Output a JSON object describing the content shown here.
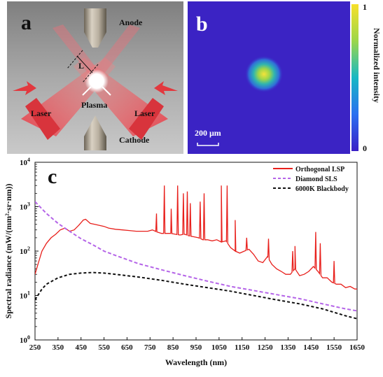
{
  "panel_a": {
    "letter": "a",
    "labels": {
      "anode": "Anode",
      "cathode": "Cathode",
      "plasma": "Plasma",
      "laser_left": "Laser",
      "laser_right": "Laser",
      "length": "L"
    }
  },
  "panel_b": {
    "letter": "b",
    "colorbar_label": "Normalized intensity",
    "colorbar_max": "1",
    "colorbar_min": "0",
    "scalebar_label": "200 μm"
  },
  "chart_data": {
    "type": "line",
    "panel_letter": "c",
    "xlabel": "Wavelength (nm)",
    "ylabel": "Spectral radiance (mW/(mm²·sr·nm))",
    "xlim": [
      250,
      1650
    ],
    "ylim": [
      1,
      10000
    ],
    "yscale": "log",
    "x_ticks": [
      "250",
      "350",
      "450",
      "550",
      "650",
      "750",
      "850",
      "950",
      "1050",
      "1150",
      "1250",
      "1350",
      "1450",
      "1550",
      "1650"
    ],
    "y_ticks": [
      {
        "base": "10",
        "exp": "0",
        "value": 1
      },
      {
        "base": "10",
        "exp": "1",
        "value": 10
      },
      {
        "base": "10",
        "exp": "2",
        "value": 100
      },
      {
        "base": "10",
        "exp": "3",
        "value": 1000
      },
      {
        "base": "10",
        "exp": "4",
        "value": 10000
      }
    ],
    "legend_position": "top-right",
    "series": [
      {
        "name": "Orthogonal LSP",
        "color": "#e8201c",
        "style": "solid",
        "points": [
          [
            250,
            30
          ],
          [
            265,
            55
          ],
          [
            280,
            100
          ],
          [
            300,
            150
          ],
          [
            320,
            200
          ],
          [
            340,
            240
          ],
          [
            360,
            300
          ],
          [
            380,
            330
          ],
          [
            400,
            280
          ],
          [
            420,
            300
          ],
          [
            440,
            380
          ],
          [
            460,
            500
          ],
          [
            470,
            520
          ],
          [
            490,
            420
          ],
          [
            510,
            400
          ],
          [
            530,
            380
          ],
          [
            550,
            360
          ],
          [
            570,
            330
          ],
          [
            600,
            310
          ],
          [
            630,
            300
          ],
          [
            660,
            290
          ],
          [
            690,
            280
          ],
          [
            720,
            280
          ],
          [
            740,
            280
          ],
          [
            760,
            300
          ],
          [
            780,
            270
          ],
          [
            800,
            250
          ],
          [
            820,
            250
          ],
          [
            840,
            250
          ],
          [
            860,
            240
          ],
          [
            880,
            230
          ],
          [
            900,
            240
          ],
          [
            920,
            220
          ],
          [
            940,
            210
          ],
          [
            960,
            200
          ],
          [
            980,
            180
          ],
          [
            1000,
            180
          ],
          [
            1020,
            170
          ],
          [
            1040,
            180
          ],
          [
            1060,
            160
          ],
          [
            1080,
            170
          ],
          [
            1100,
            120
          ],
          [
            1120,
            100
          ],
          [
            1140,
            90
          ],
          [
            1160,
            100
          ],
          [
            1180,
            110
          ],
          [
            1200,
            85
          ],
          [
            1220,
            60
          ],
          [
            1240,
            55
          ],
          [
            1260,
            75
          ],
          [
            1280,
            50
          ],
          [
            1300,
            40
          ],
          [
            1320,
            35
          ],
          [
            1340,
            30
          ],
          [
            1360,
            30
          ],
          [
            1380,
            40
          ],
          [
            1400,
            28
          ],
          [
            1420,
            30
          ],
          [
            1440,
            35
          ],
          [
            1460,
            45
          ],
          [
            1480,
            35
          ],
          [
            1500,
            25
          ],
          [
            1520,
            25
          ],
          [
            1540,
            20
          ],
          [
            1560,
            18
          ],
          [
            1580,
            18
          ],
          [
            1600,
            15
          ],
          [
            1620,
            16
          ],
          [
            1640,
            14
          ],
          [
            1650,
            14
          ]
        ],
        "peaks": [
          [
            778,
            700
          ],
          [
            812,
            3000
          ],
          [
            842,
            900
          ],
          [
            870,
            3000
          ],
          [
            895,
            2000
          ],
          [
            912,
            2200
          ],
          [
            925,
            1200
          ],
          [
            968,
            1300
          ],
          [
            985,
            2000
          ],
          [
            1060,
            3000
          ],
          [
            1085,
            3000
          ],
          [
            1120,
            500
          ],
          [
            1170,
            200
          ],
          [
            1265,
            190
          ],
          [
            1370,
            100
          ],
          [
            1380,
            130
          ],
          [
            1470,
            270
          ],
          [
            1490,
            150
          ],
          [
            1550,
            60
          ]
        ]
      },
      {
        "name": "Diamond SLS",
        "color": "#b565e8",
        "style": "dashed",
        "points": [
          [
            250,
            1300
          ],
          [
            300,
            700
          ],
          [
            350,
            420
          ],
          [
            400,
            280
          ],
          [
            450,
            190
          ],
          [
            500,
            140
          ],
          [
            550,
            100
          ],
          [
            600,
            80
          ],
          [
            700,
            52
          ],
          [
            800,
            38
          ],
          [
            900,
            28
          ],
          [
            1000,
            21
          ],
          [
            1100,
            16
          ],
          [
            1200,
            13
          ],
          [
            1300,
            10.5
          ],
          [
            1400,
            8.5
          ],
          [
            1500,
            6.5
          ],
          [
            1600,
            5
          ],
          [
            1650,
            4.5
          ]
        ]
      },
      {
        "name": "6000K Blackbody",
        "color": "#111111",
        "style": "dashed",
        "points": [
          [
            250,
            8
          ],
          [
            280,
            14
          ],
          [
            300,
            18
          ],
          [
            350,
            25
          ],
          [
            400,
            30
          ],
          [
            450,
            32
          ],
          [
            500,
            33
          ],
          [
            550,
            32
          ],
          [
            600,
            30
          ],
          [
            700,
            26
          ],
          [
            800,
            22
          ],
          [
            900,
            18
          ],
          [
            1000,
            15
          ],
          [
            1100,
            12.5
          ],
          [
            1200,
            10
          ],
          [
            1300,
            8
          ],
          [
            1400,
            6.5
          ],
          [
            1500,
            5
          ],
          [
            1600,
            3.5
          ],
          [
            1650,
            3
          ]
        ]
      }
    ]
  }
}
